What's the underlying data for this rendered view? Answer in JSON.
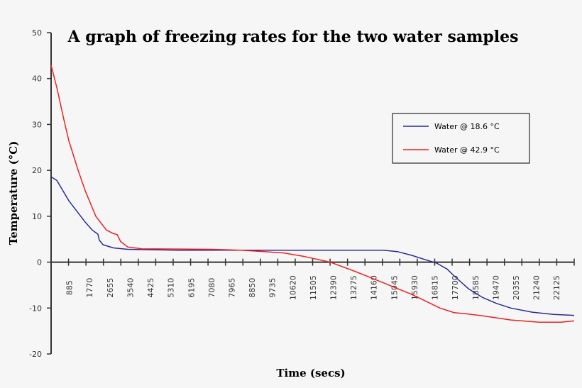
{
  "chart_data": {
    "type": "line",
    "title": "A graph of freezing rates for the two water samples",
    "xlabel": "Time (secs)",
    "ylabel": "Temperature (°C)",
    "xlim": [
      0,
      22800
    ],
    "ylim": [
      -20,
      50
    ],
    "yticks": [
      50,
      40,
      30,
      20,
      10,
      0,
      -10,
      -20
    ],
    "xticks": [
      885,
      1770,
      2655,
      3540,
      4425,
      5310,
      6195,
      7080,
      7965,
      8850,
      9735,
      10620,
      11505,
      12390,
      13275,
      14160,
      15045,
      15930,
      16815,
      17700,
      18585,
      19470,
      20355,
      21240,
      22125
    ],
    "grid": false,
    "legend": "right",
    "series": [
      {
        "name": "Water @ 18.6 °C",
        "color": "#2b2b8f",
        "x": [
          0,
          250,
          770,
          1490,
          1790,
          2040,
          2100,
          2260,
          2720,
          3340,
          5510,
          10150,
          14480,
          15090,
          15710,
          16330,
          16800,
          17260,
          17570,
          18190,
          18810,
          19420,
          20040,
          20970,
          21900,
          22800
        ],
        "y": [
          18.6,
          17.8,
          13.4,
          8.7,
          7,
          6.1,
          4.8,
          3.8,
          3.1,
          2.8,
          2.6,
          2.6,
          2.6,
          2.3,
          1.5,
          0.5,
          -0.2,
          -1.5,
          -3,
          -5.8,
          -7.7,
          -9,
          -10,
          -10.9,
          -11.4,
          -11.6
        ]
      },
      {
        "name": "Water @ 42.9 °C",
        "color": "#ee2222",
        "x": [
          0,
          250,
          560,
          770,
          1180,
          1490,
          1950,
          2410,
          2720,
          2880,
          3030,
          3340,
          3960,
          7050,
          8290,
          10150,
          11070,
          12160,
          13240,
          14480,
          15710,
          16330,
          16950,
          17570,
          18190,
          18810,
          20040,
          21280,
          22210,
          22800
        ],
        "y": [
          42.9,
          38,
          31,
          26.5,
          20,
          15.5,
          10,
          7,
          6.2,
          6,
          4.5,
          3.3,
          2.9,
          2.8,
          2.6,
          2,
          1.2,
          0,
          -2,
          -4.5,
          -7,
          -8.5,
          -10,
          -11,
          -11.3,
          -11.7,
          -12.6,
          -13.1,
          -13.1,
          -12.8
        ]
      }
    ]
  }
}
